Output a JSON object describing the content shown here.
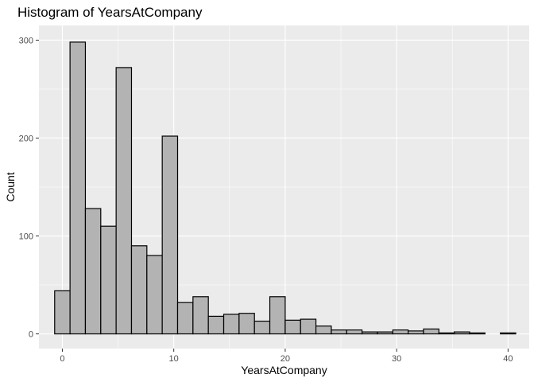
{
  "chart_data": {
    "type": "histogram",
    "title": "Histogram of YearsAtCompany",
    "xlabel": "YearsAtCompany",
    "ylabel": "Count",
    "xlim": [
      -2.1,
      41.9
    ],
    "ylim": [
      -15,
      315
    ],
    "xticks": [
      0,
      10,
      20,
      30,
      40
    ],
    "yticks": [
      0,
      100,
      200,
      300
    ],
    "grid": true,
    "bin_width": 1.3793,
    "bin_start": -0.69,
    "counts": [
      44,
      298,
      128,
      110,
      272,
      90,
      80,
      202,
      32,
      38,
      18,
      20,
      21,
      13,
      38,
      14,
      15,
      8,
      4,
      4,
      2,
      2,
      4,
      3,
      5,
      1,
      2,
      1,
      0,
      1
    ],
    "colors": {
      "panel": "#ebebeb",
      "grid": "#ffffff",
      "bar_fill": "#b3b3b3",
      "bar_stroke": "#000000"
    }
  }
}
